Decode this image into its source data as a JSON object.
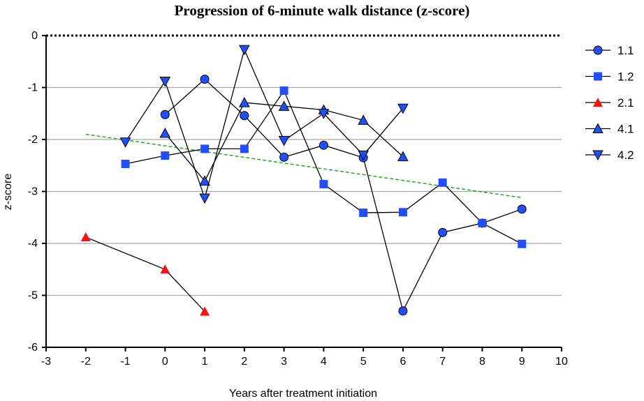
{
  "chart_data": {
    "type": "line",
    "title": "Progression of 6-minute walk distance (z-score)",
    "xlabel": "Years after treatment initiation",
    "ylabel": "z-score",
    "xlim": [
      -3,
      10
    ],
    "ylim": [
      -6,
      0
    ],
    "xticks": [
      -3,
      -2,
      -1,
      0,
      1,
      2,
      3,
      4,
      5,
      6,
      7,
      8,
      9,
      10
    ],
    "yticks": [
      0,
      -1,
      -2,
      -3,
      -4,
      -5,
      -6
    ],
    "grid": "horizontal",
    "reference_line": {
      "y": 0,
      "style": "dotted"
    },
    "legend_position": "right",
    "series": [
      {
        "name": "1.1",
        "marker": "circle",
        "color": "#1f4fff",
        "x": [
          0,
          1,
          2,
          3,
          4,
          5,
          6,
          7,
          8,
          9
        ],
        "y": [
          -1.52,
          -0.84,
          -1.54,
          -2.34,
          -2.11,
          -2.35,
          -5.3,
          -3.79,
          -3.61,
          -3.34
        ]
      },
      {
        "name": "1.2",
        "marker": "square",
        "color": "#1f4fff",
        "x": [
          -1,
          0,
          1,
          2,
          3,
          4,
          5,
          6,
          7,
          8,
          9
        ],
        "y": [
          -2.47,
          -2.31,
          -2.18,
          -2.18,
          -1.06,
          -2.86,
          -3.41,
          -3.4,
          -2.83,
          -3.61,
          -4.01
        ]
      },
      {
        "name": "2.1",
        "marker": "triangle-up",
        "color": "#ff1010",
        "x": [
          -2,
          0,
          1
        ],
        "y": [
          -3.88,
          -4.5,
          -5.31
        ]
      },
      {
        "name": "4.1",
        "marker": "triangle-up",
        "color": "#1f4fff",
        "x": [
          0,
          1,
          2,
          3,
          4,
          5,
          6
        ],
        "y": [
          -1.88,
          -2.8,
          -1.29,
          -1.36,
          -1.43,
          -1.63,
          -2.33
        ]
      },
      {
        "name": "4.2",
        "marker": "triangle-down",
        "color": "#1f4fff",
        "x": [
          -1,
          0,
          1,
          2,
          3,
          4,
          5,
          6
        ],
        "y": [
          -2.05,
          -0.88,
          -3.13,
          -0.27,
          -2.02,
          -1.5,
          -2.3,
          -1.4
        ]
      }
    ],
    "trendline": {
      "color": "#22aa22",
      "style": "dashed",
      "x": [
        -2,
        9
      ],
      "y": [
        -1.9,
        -3.12
      ]
    }
  }
}
